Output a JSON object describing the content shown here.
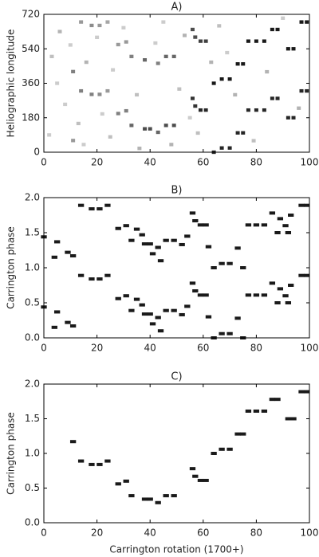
{
  "chart_data": [
    {
      "type": "heatmap",
      "title": "A)",
      "ylabel": "Heliographic longitude",
      "x": [
        11,
        14,
        18,
        21,
        24,
        28,
        31,
        33,
        38,
        40,
        43,
        46,
        49,
        56,
        57,
        59,
        61,
        64,
        67,
        70,
        73,
        75,
        77,
        80,
        83,
        86,
        88,
        92,
        94,
        97,
        99,
        11,
        14,
        18,
        21,
        24,
        28,
        31,
        33,
        38,
        43,
        46,
        49,
        56,
        57,
        59,
        61,
        64,
        67,
        70,
        73,
        75,
        77,
        80,
        83,
        86,
        88,
        92,
        94,
        97,
        99,
        2,
        3,
        5,
        6,
        8,
        10,
        13,
        15,
        16,
        20,
        22,
        25,
        26,
        30,
        35,
        36,
        42,
        45,
        48,
        51,
        53,
        55,
        58,
        63,
        66,
        69,
        72,
        79,
        84,
        90,
        96
      ],
      "y": [
        421,
        320,
        302,
        302,
        320,
        202,
        216,
        140,
        122,
        122,
        104,
        140,
        140,
        281,
        241,
        220,
        220,
        360,
        382,
        382,
        461,
        461,
        580,
        580,
        580,
        641,
        641,
        540,
        540,
        680,
        680,
        61,
        680,
        662,
        662,
        680,
        562,
        576,
        500,
        482,
        464,
        500,
        500,
        641,
        601,
        580,
        580,
        0,
        22,
        22,
        101,
        101,
        220,
        220,
        220,
        281,
        281,
        180,
        180,
        320,
        320,
        90,
        500,
        360,
        630,
        250,
        560,
        150,
        40,
        470,
        600,
        200,
        80,
        430,
        650,
        300,
        20,
        570,
        680,
        40,
        330,
        610,
        180,
        100,
        470,
        660,
        520,
        300,
        60,
        420,
        700,
        230
      ],
      "values": [
        0.5,
        0.5,
        0.5,
        0.45,
        0.4,
        0.5,
        0.5,
        0.6,
        0.7,
        0.7,
        0.6,
        0.7,
        0.7,
        0.8,
        0.8,
        0.85,
        0.85,
        0.9,
        0.9,
        0.9,
        0.9,
        0.9,
        0.9,
        0.9,
        0.9,
        0.9,
        0.9,
        0.9,
        0.9,
        0.9,
        0.9,
        0.4,
        0.4,
        0.45,
        0.4,
        0.35,
        0.4,
        0.4,
        0.5,
        0.6,
        0.5,
        0.6,
        0.6,
        0.7,
        0.7,
        0.75,
        0.75,
        0.85,
        0.85,
        0.85,
        0.85,
        0.85,
        0.85,
        0.85,
        0.85,
        0.85,
        0.85,
        0.85,
        0.85,
        0.85,
        0.85,
        0.2,
        0.25,
        0.2,
        0.3,
        0.2,
        0.2,
        0.25,
        0.2,
        0.3,
        0.2,
        0.2,
        0.25,
        0.2,
        0.2,
        0.25,
        0.3,
        0.2,
        0.2,
        0.3,
        0.25,
        0.3,
        0.2,
        0.25,
        0.3,
        0.25,
        0.2,
        0.3,
        0.25,
        0.3,
        0.2,
        0.3
      ],
      "xlim": [
        0,
        100
      ],
      "xticks": [
        0,
        20,
        40,
        60,
        80,
        100
      ],
      "ylim": [
        0,
        720
      ],
      "yticks": [
        0,
        180,
        360,
        540,
        720
      ]
    },
    {
      "type": "scatter",
      "title": "B)",
      "ylabel": "Carrington phase",
      "color": "#1a1a1a",
      "x": [
        11,
        11,
        14,
        14,
        18,
        18,
        21,
        21,
        24,
        24,
        28,
        28,
        31,
        31,
        33,
        33,
        38,
        38,
        40,
        40,
        43,
        43,
        46,
        46,
        49,
        49,
        56,
        56,
        57,
        57,
        59,
        59,
        61,
        61,
        64,
        64,
        67,
        67,
        70,
        70,
        73,
        73,
        77,
        77,
        80,
        80,
        83,
        83,
        86,
        86,
        92,
        92,
        97,
        97,
        99,
        99,
        0,
        0,
        5,
        5,
        4,
        4,
        9,
        9,
        35,
        35,
        37,
        37,
        41,
        41,
        44,
        44,
        52,
        52,
        54,
        54,
        62,
        62,
        75,
        75,
        89,
        89,
        91,
        91,
        93,
        93,
        88,
        88
      ],
      "y": [
        1.17,
        0.17,
        0.89,
        1.89,
        0.84,
        1.84,
        0.84,
        1.84,
        0.89,
        1.89,
        0.56,
        1.56,
        0.6,
        1.6,
        0.39,
        1.39,
        0.34,
        1.34,
        0.34,
        1.34,
        0.29,
        1.29,
        0.39,
        1.39,
        0.39,
        1.39,
        0.78,
        1.78,
        0.67,
        1.67,
        0.61,
        1.61,
        0.61,
        1.61,
        1.0,
        0.0,
        1.06,
        0.06,
        1.06,
        0.06,
        1.28,
        0.28,
        1.61,
        0.61,
        1.61,
        0.61,
        1.61,
        0.61,
        1.78,
        0.78,
        1.5,
        0.5,
        1.89,
        0.89,
        1.89,
        0.89,
        1.44,
        0.44,
        1.37,
        0.37,
        1.15,
        0.15,
        1.22,
        0.22,
        1.55,
        0.55,
        1.47,
        0.47,
        1.2,
        0.2,
        1.1,
        0.1,
        1.33,
        0.33,
        1.45,
        0.45,
        1.3,
        0.3,
        1.0,
        0.0,
        1.7,
        0.7,
        1.6,
        0.6,
        1.75,
        0.75,
        1.5,
        0.5
      ],
      "xlim": [
        0,
        100
      ],
      "xticks": [
        0,
        20,
        40,
        60,
        80,
        100
      ],
      "ylim": [
        0,
        2
      ],
      "yticks": [
        {
          "value": 0,
          "label": "0.0"
        },
        0.5,
        {
          "value": 1,
          "label": "1.0"
        },
        1.5,
        {
          "value": 2,
          "label": "2.0"
        }
      ]
    },
    {
      "type": "scatter",
      "title": "C)",
      "ylabel": "Carrington phase",
      "xlabel": "Carrington rotation (1700+)",
      "color": "#1a1a1a",
      "x": [
        11,
        14,
        18,
        21,
        24,
        28,
        31,
        33,
        38,
        40,
        43,
        46,
        49,
        56,
        57,
        59,
        61,
        64,
        67,
        70,
        73,
        75,
        77,
        80,
        83,
        86,
        88,
        92,
        94,
        97,
        99
      ],
      "y": [
        1.17,
        0.89,
        0.84,
        0.84,
        0.89,
        0.56,
        0.6,
        0.39,
        0.34,
        0.34,
        0.29,
        0.39,
        0.39,
        0.78,
        0.67,
        0.61,
        0.61,
        1.0,
        1.06,
        1.06,
        1.28,
        1.28,
        1.61,
        1.61,
        1.61,
        1.78,
        1.78,
        1.5,
        1.5,
        1.89,
        1.89
      ],
      "xlim": [
        0,
        100
      ],
      "xticks": [
        0,
        20,
        40,
        60,
        80,
        100
      ],
      "ylim": [
        0,
        2
      ],
      "yticks": [
        {
          "value": 0,
          "label": "0.0"
        },
        0.5,
        {
          "value": 1,
          "label": "1.0"
        },
        1.5,
        {
          "value": 2,
          "label": "2.0"
        }
      ]
    }
  ]
}
